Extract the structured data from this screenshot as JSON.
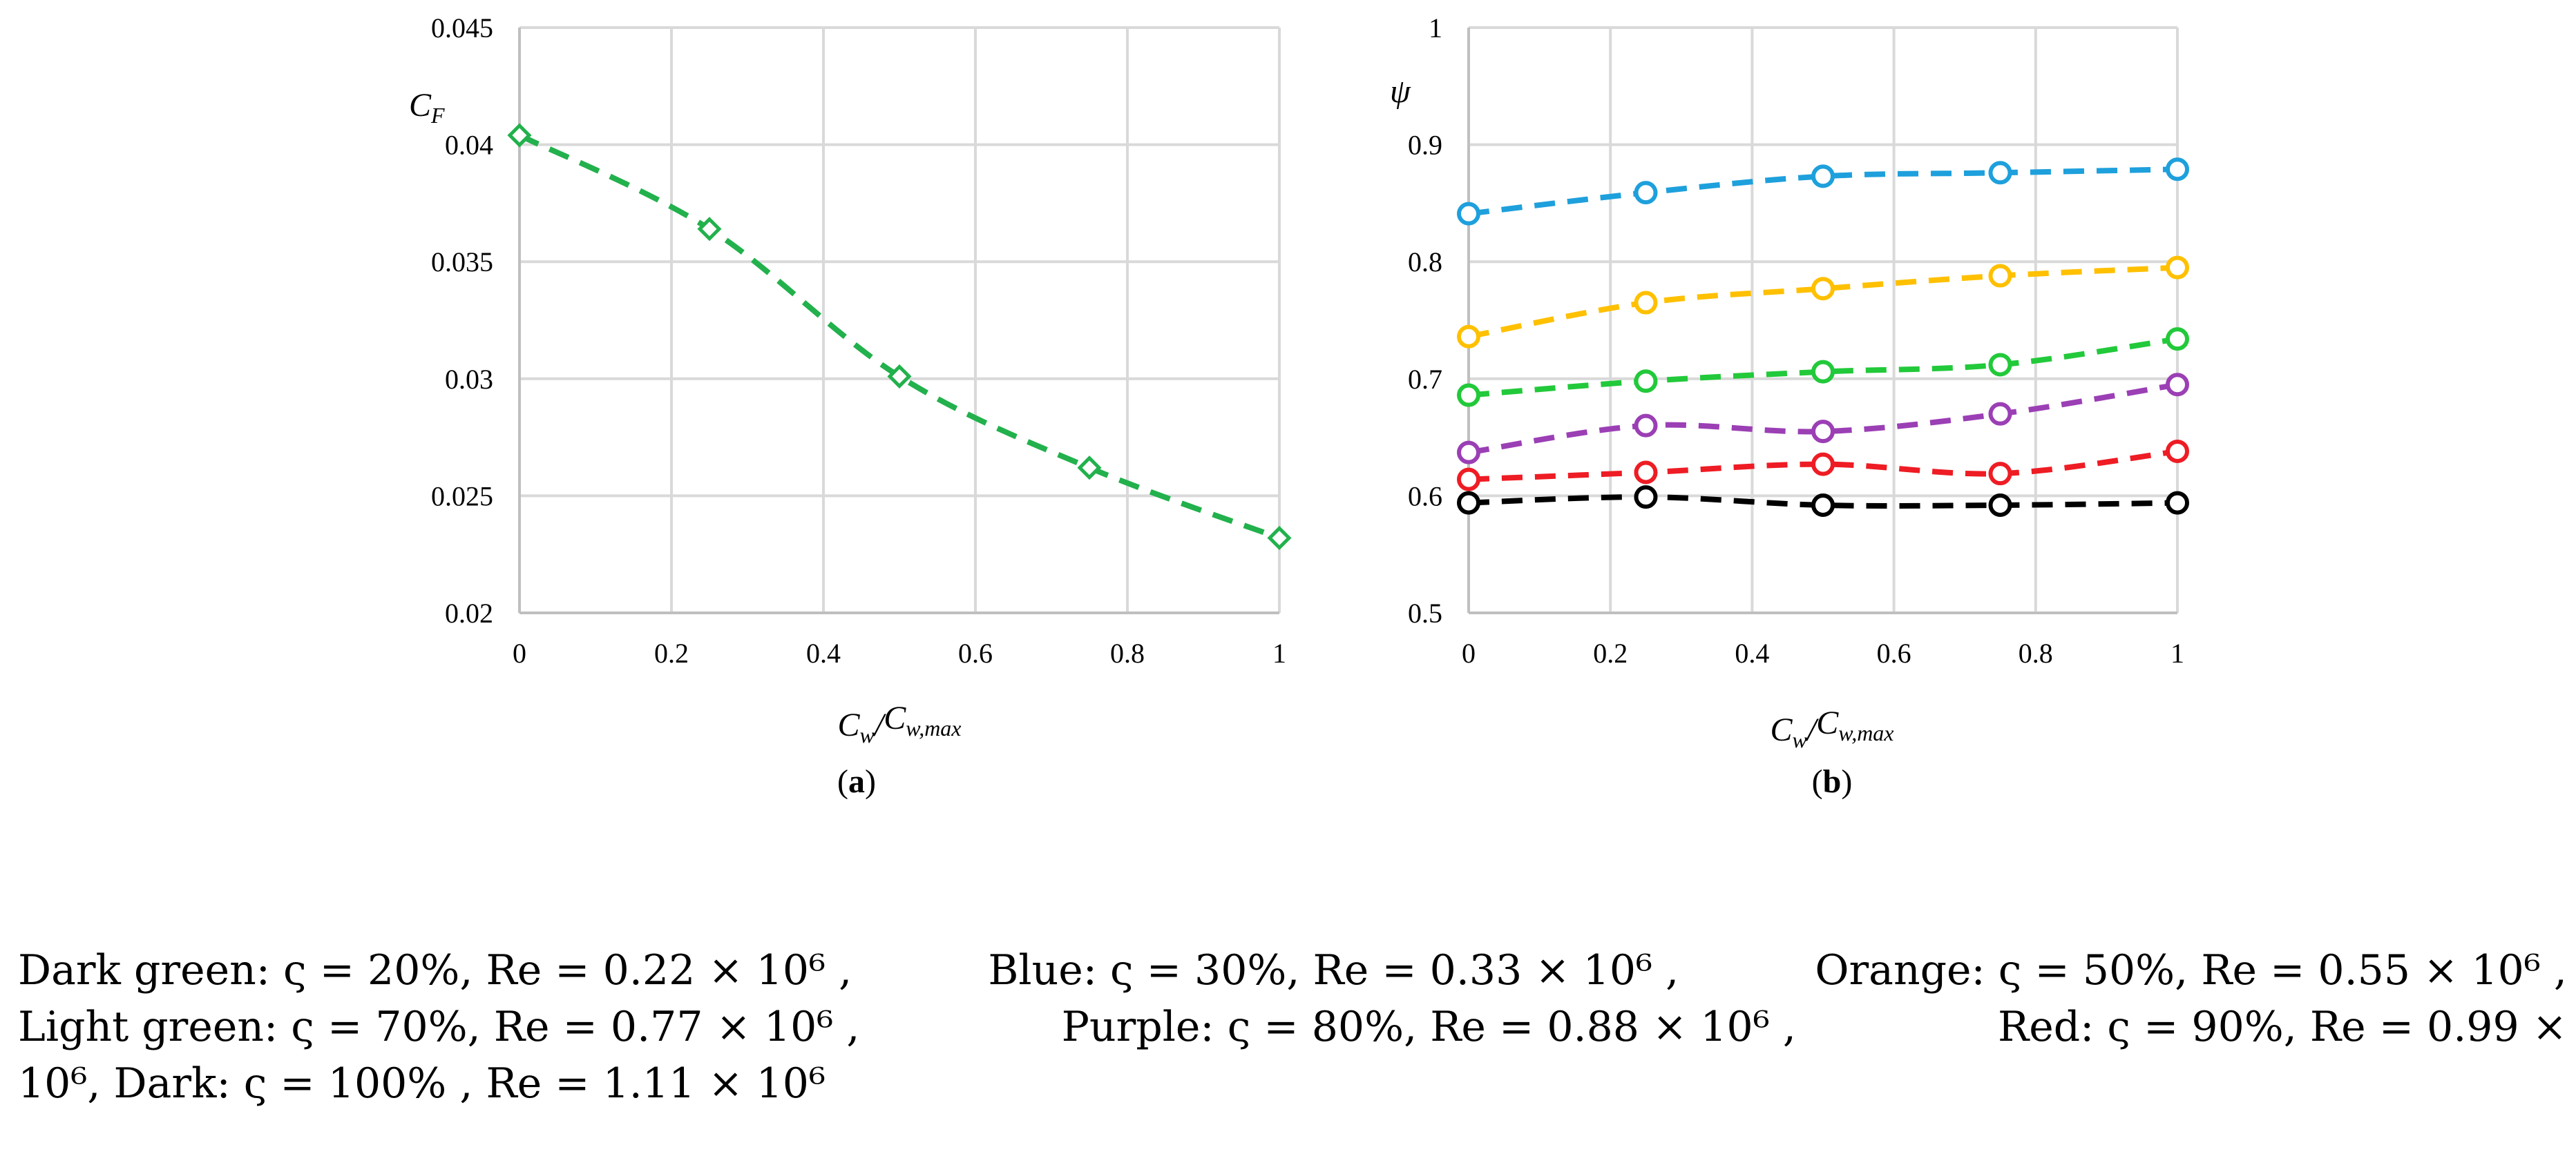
{
  "chart_data": [
    {
      "id": "a",
      "type": "line",
      "panel_label": "a",
      "ylabel": "C_F",
      "xlabel": "C_w/C_w,max",
      "xlim": [
        0,
        1
      ],
      "ylim": [
        0.02,
        0.045
      ],
      "x_ticks": [
        "0",
        "0.2",
        "0.4",
        "0.6",
        "0.8",
        "1"
      ],
      "y_ticks": [
        "0.02",
        "0.025",
        "0.03",
        "0.035",
        "0.04",
        "0.045"
      ],
      "grid": true,
      "series": [
        {
          "name": "C_F",
          "color": "#22b14c",
          "marker": "diamond",
          "line_style": "dashed",
          "x": [
            0,
            0.25,
            0.5,
            0.75,
            1
          ],
          "values": [
            0.0404,
            0.0364,
            0.0301,
            0.0262,
            0.0232
          ]
        }
      ]
    },
    {
      "id": "b",
      "type": "line",
      "panel_label": "b",
      "ylabel": "ψ",
      "xlabel": "C_w/C_w,max",
      "xlim": [
        0,
        1
      ],
      "ylim": [
        0.5,
        1
      ],
      "x_ticks": [
        "0",
        "0.2",
        "0.4",
        "0.6",
        "0.8",
        "1"
      ],
      "y_ticks": [
        "0.5",
        "0.6",
        "0.7",
        "0.8",
        "0.9",
        "1"
      ],
      "grid": true,
      "series": [
        {
          "name": "Blue",
          "color": "#1ea0dc",
          "marker": "circle",
          "line_style": "dashed",
          "x": [
            0,
            0.25,
            0.5,
            0.75,
            1
          ],
          "values": [
            0.841,
            0.859,
            0.873,
            0.876,
            0.879
          ]
        },
        {
          "name": "Orange",
          "color": "#ffc000",
          "marker": "circle",
          "line_style": "dashed",
          "x": [
            0,
            0.25,
            0.5,
            0.75,
            1
          ],
          "values": [
            0.736,
            0.765,
            0.777,
            0.788,
            0.795
          ]
        },
        {
          "name": "Light green",
          "color": "#22c93a",
          "marker": "circle",
          "line_style": "dashed",
          "x": [
            0,
            0.25,
            0.5,
            0.75,
            1
          ],
          "values": [
            0.686,
            0.698,
            0.706,
            0.712,
            0.734
          ]
        },
        {
          "name": "Purple",
          "color": "#9b3fb5",
          "marker": "circle",
          "line_style": "dashed",
          "x": [
            0,
            0.25,
            0.5,
            0.75,
            1
          ],
          "values": [
            0.637,
            0.66,
            0.655,
            0.67,
            0.695
          ]
        },
        {
          "name": "Red",
          "color": "#ee1c24",
          "marker": "circle",
          "line_style": "dashed",
          "x": [
            0,
            0.25,
            0.5,
            0.75,
            1
          ],
          "values": [
            0.614,
            0.62,
            0.627,
            0.619,
            0.638
          ]
        },
        {
          "name": "Dark",
          "color": "#000000",
          "marker": "circle",
          "line_style": "dashed",
          "x": [
            0,
            0.25,
            0.5,
            0.75,
            1
          ],
          "values": [
            0.594,
            0.599,
            0.592,
            0.592,
            0.594
          ]
        }
      ]
    }
  ],
  "caption": {
    "line1": [
      "Dark  green:  ς = 20%, Re = 0.22 × 10⁶ ,",
      "Blue:  ς = 30%, Re = 0.33 × 10⁶ ,",
      "Orange:  ς = 50%, Re = 0.55 × 10⁶ ,"
    ],
    "line2": [
      "Light    green:    ς = 70%, Re = 0.77 × 10⁶    ,",
      "Purple:    ς = 80%, Re = 0.88 × 10⁶    ,",
      "Red:    ς = 90%, Re = 0.99 ×"
    ],
    "line3": [
      "10⁶, Dark:  ς = 100% , Re = 1.11 × 10⁶"
    ]
  }
}
